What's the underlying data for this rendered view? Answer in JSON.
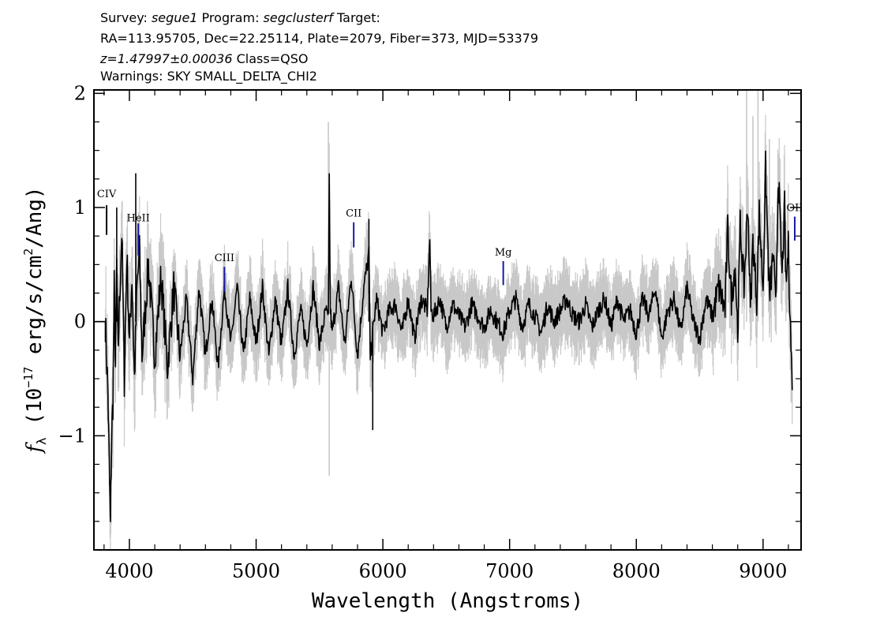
{
  "header": {
    "line1": {
      "survey_label": "Survey: ",
      "survey": "segue1",
      "program_label": " Program: ",
      "program": "segclusterf",
      "target_label": " Target:"
    },
    "line2": "RA=113.95705, Dec=22.25114, Plate=2079, Fiber=373, MJD=53379",
    "line3": {
      "redshift": "z=1.47997±0.00036",
      "class": " Class=QSO"
    },
    "line4": "Warnings: SKY SMALL_DELTA_CHI2"
  },
  "chart_data": {
    "type": "line",
    "xlabel": "Wavelength (Angstroms)",
    "ylabel": {
      "sym": "f",
      "sub": "λ",
      "rest": " (10",
      "exp": "−17",
      "units": " erg/s/cm",
      "exp2": "2",
      "tail": "/Ang)"
    },
    "xlim": [
      3720,
      9300
    ],
    "ylim": [
      -2.0,
      2.03
    ],
    "x_ticks": [
      {
        "value": 4000,
        "label": "4000"
      },
      {
        "value": 5000,
        "label": "5000"
      },
      {
        "value": 6000,
        "label": "6000"
      },
      {
        "value": 7000,
        "label": "7000"
      },
      {
        "value": 8000,
        "label": "8000"
      },
      {
        "value": 9000,
        "label": "9000"
      }
    ],
    "y_ticks": [
      {
        "value": 2,
        "label": "2"
      },
      {
        "value": 1,
        "label": "1"
      },
      {
        "value": 0,
        "label": "0"
      },
      {
        "value": -1,
        "label": "−1"
      }
    ],
    "x_minor_step": 200,
    "y_minor_step": 0.25,
    "series": [
      {
        "color": "#000000",
        "x": [
          3810,
          3830,
          3840,
          3850,
          3860,
          3870,
          3880,
          3890,
          3900,
          3910,
          3920,
          3940,
          3960,
          3980,
          4000,
          4020,
          4040,
          4060,
          4080,
          4100,
          4150,
          4200,
          4250,
          4300,
          4350,
          4400,
          4450,
          4500,
          4550,
          4600,
          4650,
          4700,
          4750,
          4800,
          4850,
          4900,
          4950,
          5000,
          5050,
          5100,
          5150,
          5200,
          5250,
          5300,
          5350,
          5400,
          5450,
          5500,
          5550,
          5570,
          5577,
          5585,
          5600,
          5650,
          5700,
          5750,
          5800,
          5850,
          5890,
          5900,
          5950,
          6000,
          6050,
          6100,
          6150,
          6200,
          6250,
          6300,
          6350,
          6370,
          6380,
          6400,
          6450,
          6500,
          6550,
          6600,
          6650,
          6700,
          6750,
          6800,
          6850,
          6900,
          6950,
          7000,
          7050,
          7100,
          7150,
          7200,
          7250,
          7300,
          7350,
          7400,
          7450,
          7500,
          7550,
          7600,
          7650,
          7700,
          7750,
          7800,
          7850,
          7900,
          7950,
          8000,
          8050,
          8100,
          8150,
          8200,
          8250,
          8300,
          8350,
          8400,
          8450,
          8500,
          8550,
          8600,
          8650,
          8700,
          8720,
          8750,
          8780,
          8800,
          8820,
          8850,
          8880,
          8900,
          8920,
          8950,
          8970,
          9000,
          9020,
          9050,
          9080,
          9100,
          9120,
          9150,
          9170,
          9180,
          9200,
          9210,
          9220,
          9230
        ],
        "y": [
          0.0,
          -0.6,
          -1.2,
          -1.8,
          -1.0,
          -0.7,
          0.3,
          -0.4,
          0.5,
          -0.3,
          0.1,
          0.8,
          -0.5,
          0.6,
          -0.2,
          0.4,
          -0.5,
          0.3,
          0.6,
          -0.3,
          0.5,
          -0.3,
          0.4,
          -0.4,
          0.3,
          -0.3,
          0.2,
          -0.5,
          0.3,
          -0.3,
          0.2,
          -0.4,
          0.3,
          -0.2,
          0.3,
          -0.3,
          0.2,
          -0.2,
          0.3,
          -0.3,
          0.2,
          -0.2,
          0.3,
          -0.3,
          0.1,
          -0.2,
          0.3,
          -0.2,
          0.1,
          0.0,
          1.33,
          0.1,
          -0.1,
          0.3,
          -0.2,
          0.4,
          -0.3,
          0.3,
          0.6,
          -0.3,
          0.2,
          -0.1,
          0.1,
          0.15,
          -0.1,
          0.2,
          -0.15,
          0.2,
          0.1,
          0.73,
          0.1,
          0.05,
          0.2,
          -0.05,
          0.15,
          0.05,
          -0.05,
          0.15,
          0.05,
          -0.05,
          0.1,
          0.0,
          -0.1,
          0.1,
          0.2,
          -0.05,
          0.15,
          0.05,
          -0.1,
          0.15,
          0.0,
          0.1,
          0.2,
          0.05,
          0.0,
          0.15,
          -0.05,
          0.1,
          0.2,
          -0.05,
          0.2,
          0.0,
          0.1,
          -0.1,
          0.2,
          0.05,
          0.3,
          -0.15,
          0.1,
          0.2,
          -0.1,
          0.3,
          0.0,
          -0.15,
          0.2,
          0.05,
          0.3,
          0.1,
          0.8,
          0.2,
          0.5,
          -0.1,
          0.85,
          0.3,
          1.05,
          0.1,
          0.7,
          0.2,
          0.95,
          0.3,
          1.35,
          0.2,
          0.6,
          0.1,
          1.3,
          0.4,
          1.0,
          0.3,
          0.65,
          0.2,
          -0.2,
          -0.6
        ]
      }
    ],
    "error_band": {
      "color": "#c8c8c8",
      "sigma": 0.28
    },
    "spikes": [
      {
        "x": 3900,
        "y": 1.0
      },
      {
        "x": 4050,
        "y": 1.3
      },
      {
        "x": 5570,
        "y": 1.75
      },
      {
        "x": 5577,
        "y": -1.35
      },
      {
        "x": 5890,
        "y": 0.9
      },
      {
        "x": 5920,
        "y": -0.95
      },
      {
        "x": 8870,
        "y": 2.03
      },
      {
        "x": 8920,
        "y": 1.8
      },
      {
        "x": 8960,
        "y": 2.03
      },
      {
        "x": 9050,
        "y": 1.6
      }
    ],
    "line_labels": [
      {
        "label": "CIV",
        "x": 3820,
        "tick_top": 1.02,
        "tick_bottom": 0.76,
        "label_y": 1.09,
        "tick_color": "#000000"
      },
      {
        "label": "HeII",
        "x": 4070,
        "tick_top": 0.86,
        "tick_bottom": 0.58,
        "label_y": 0.88,
        "tick_color": "#1a1aa0"
      },
      {
        "label": "CIII",
        "x": 4750,
        "tick_top": 0.48,
        "tick_bottom": 0.26,
        "label_y": 0.53,
        "tick_color": "#1a1aa0"
      },
      {
        "label": "CII",
        "x": 5770,
        "tick_top": 0.87,
        "tick_bottom": 0.65,
        "label_y": 0.92,
        "tick_color": "#1a1aa0"
      },
      {
        "label": "Mg",
        "x": 6950,
        "tick_top": 0.53,
        "tick_bottom": 0.32,
        "label_y": 0.58,
        "tick_color": "#1a1aa0"
      },
      {
        "label": "OII",
        "x": 9250,
        "tick_top": 0.92,
        "tick_bottom": 0.71,
        "label_y": 0.97,
        "tick_color": "#1a1aa0"
      }
    ]
  }
}
